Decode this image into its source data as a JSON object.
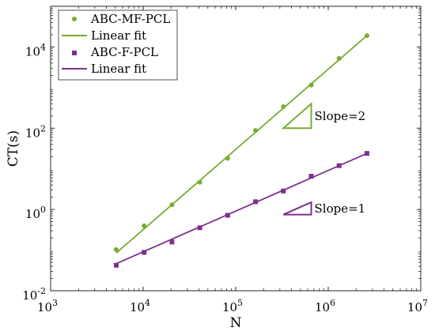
{
  "chart_data": {
    "type": "scatter",
    "xscale": "log",
    "yscale": "log",
    "xlim": [
      1000,
      10000000
    ],
    "ylim": [
      0.01,
      100000
    ],
    "xlabel": "N",
    "ylabel": "CT(s)",
    "x_ticks": [
      {
        "value": 1000,
        "base": "10",
        "exp": "3"
      },
      {
        "value": 10000,
        "base": "10",
        "exp": "4"
      },
      {
        "value": 100000,
        "base": "10",
        "exp": "5"
      },
      {
        "value": 1000000,
        "base": "10",
        "exp": "6"
      },
      {
        "value": 10000000,
        "base": "10",
        "exp": "7"
      }
    ],
    "y_ticks": [
      {
        "value": 0.01,
        "base": "10",
        "exp": "-2"
      },
      {
        "value": 1,
        "base": "10",
        "exp": "0"
      },
      {
        "value": 100,
        "base": "10",
        "exp": "2"
      },
      {
        "value": 10000,
        "base": "10",
        "exp": "4"
      }
    ],
    "grid": false,
    "legend_position": "top-left",
    "series": [
      {
        "name": "ABC-MF-PCL",
        "color": "#77ac30",
        "marker": "circle",
        "x": [
          5120,
          10240,
          20480,
          40960,
          81920,
          163840,
          327680,
          655360,
          1310720,
          2621440
        ],
        "y": [
          0.103,
          0.395,
          1.3,
          4.7,
          18.2,
          88.0,
          340,
          1150,
          5200,
          19000
        ],
        "fit": {
          "name": "Linear fit",
          "x": [
            5120,
            2621440
          ],
          "y": [
            0.085,
            19000
          ]
        }
      },
      {
        "name": "ABC-F-PCL",
        "color": "#7e2f8e",
        "marker": "square",
        "x": [
          5120,
          10240,
          20480,
          40960,
          81920,
          163840,
          327680,
          655360,
          1310720,
          2621440
        ],
        "y": [
          0.0425,
          0.088,
          0.158,
          0.355,
          0.72,
          1.55,
          2.85,
          6.6,
          12.0,
          24.0
        ],
        "fit": {
          "name": "Linear fit",
          "x": [
            5120,
            2621440
          ],
          "y": [
            0.0465,
            24.0
          ]
        }
      }
    ],
    "annotations": [
      {
        "text": "Slope=2",
        "color": "#77ac30",
        "triangle": {
          "x0": 327680,
          "x1": 655360,
          "y0": 100,
          "y1": 400
        }
      },
      {
        "text": "Slope=1",
        "color": "#7e2f8e",
        "triangle": {
          "x0": 327680,
          "x1": 655360,
          "y0": 0.75,
          "y1": 1.5
        }
      }
    ]
  }
}
